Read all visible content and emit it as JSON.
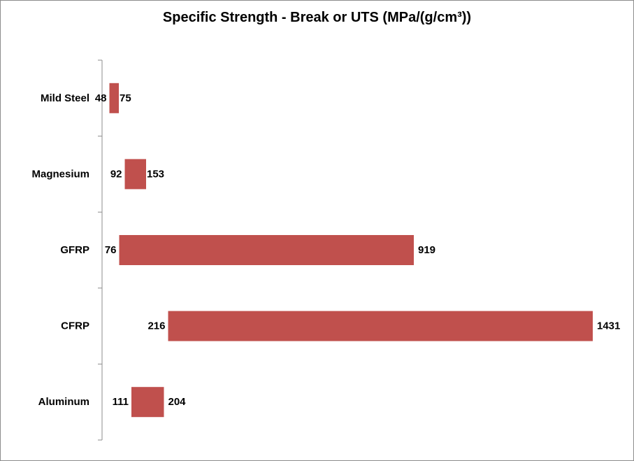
{
  "chart_data": {
    "type": "bar",
    "orientation": "horizontal",
    "subtype": "floating-range",
    "title": "Specific Strength - Break or UTS (MPa/(g/cm³))",
    "xlabel": "",
    "ylabel": "",
    "categories": [
      "Mild Steel",
      "Magnesium",
      "GFRP",
      "CFRP",
      "Aluminum"
    ],
    "ranges": [
      {
        "category": "Mild Steel",
        "low": 48,
        "high": 75
      },
      {
        "category": "Magnesium",
        "low": 92,
        "high": 153
      },
      {
        "category": "GFRP",
        "low": 76,
        "high": 919
      },
      {
        "category": "CFRP",
        "low": 216,
        "high": 1431
      },
      {
        "category": "Aluminum",
        "low": 111,
        "high": 204
      }
    ],
    "bar_color": "#c0504d",
    "grid": false,
    "legend": "none"
  }
}
